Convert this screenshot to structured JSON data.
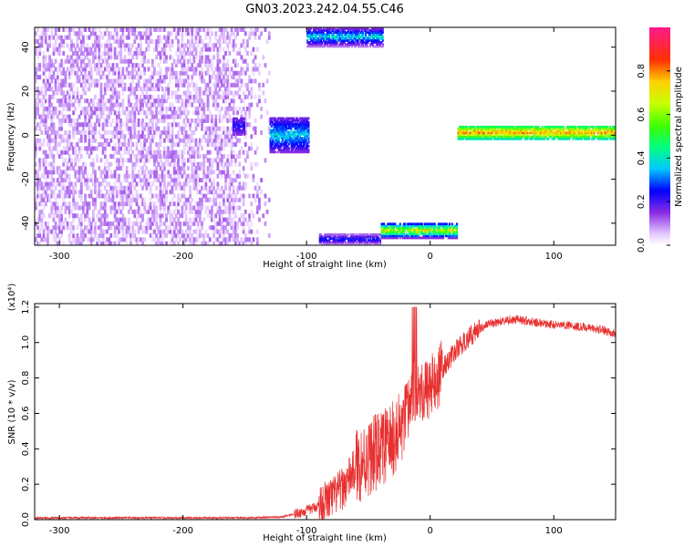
{
  "title": "GN03.2023.242.04.55.C46",
  "colors": {
    "snr_line": "#e83030",
    "axis": "#000000",
    "background": "#ffffff"
  },
  "chart_data": [
    {
      "type": "heatmap",
      "xlabel": "Height of straight line (km)",
      "ylabel": "Frequency (Hz)",
      "xlim": [
        -320,
        150
      ],
      "ylim": [
        -50,
        49
      ],
      "x_ticks": [
        -300,
        -200,
        -100,
        0,
        100
      ],
      "x_tick_labels": [
        "-300",
        "-200",
        "-100",
        "0",
        "100"
      ],
      "y_ticks": [
        -40,
        -20,
        0,
        20,
        40
      ],
      "y_tick_labels": [
        "-40",
        "-20",
        "0",
        "20",
        "40"
      ],
      "colorbar": {
        "label": "Normalized spectral amplitude",
        "range": [
          0,
          1
        ],
        "ticks": [
          0.0,
          0.2,
          0.4,
          0.6,
          0.8
        ],
        "tick_labels": [
          "0.0",
          "0.2",
          "0.4",
          "0.6",
          "0.8"
        ],
        "colormap": "rainbow (white → violet → blue → cyan → green → yellow → red → magenta)"
      },
      "regions": [
        {
          "desc": "scattered noise",
          "x": [
            -320,
            -130
          ],
          "y": [
            -50,
            49
          ],
          "amplitude": [
            0.03,
            0.12
          ]
        },
        {
          "desc": "blob",
          "x": [
            -160,
            -150
          ],
          "y": [
            0,
            8
          ],
          "amplitude": [
            0.15,
            0.25
          ]
        },
        {
          "desc": "blob",
          "x": [
            -130,
            -98
          ],
          "y": [
            -8,
            8
          ],
          "amplitude": [
            0.15,
            0.42
          ]
        },
        {
          "desc": "band",
          "x": [
            -100,
            -38
          ],
          "y": [
            40,
            49
          ],
          "amplitude": [
            0.1,
            0.45
          ]
        },
        {
          "desc": "band",
          "x": [
            -90,
            -40
          ],
          "y": [
            -50,
            -45
          ],
          "amplitude": [
            0.08,
            0.3
          ]
        },
        {
          "desc": "band",
          "x": [
            -40,
            22
          ],
          "y": [
            -47,
            -40
          ],
          "amplitude": [
            0.15,
            0.8
          ]
        },
        {
          "desc": "band",
          "x": [
            22,
            150
          ],
          "y": [
            -2,
            4
          ],
          "amplitude": [
            0.4,
            0.9
          ]
        }
      ]
    },
    {
      "type": "line",
      "xlabel": "Height of straight line (km)",
      "ylabel": "SNR (10 * v/v)",
      "y_multiplier": "(x10⁴)",
      "xlim": [
        -320,
        150
      ],
      "ylim": [
        0,
        1.22
      ],
      "x_ticks": [
        -300,
        -200,
        -100,
        0,
        100
      ],
      "x_tick_labels": [
        "-300",
        "-200",
        "-100",
        "0",
        "100"
      ],
      "y_ticks": [
        0.0,
        0.2,
        0.4,
        0.6,
        0.8,
        1.0,
        1.2
      ],
      "y_tick_labels": [
        "0.0",
        "0.2",
        "0.4",
        "0.6",
        "0.8",
        "1.0",
        "1.2"
      ],
      "series": [
        {
          "x": [
            -320,
            -250,
            -200,
            -150,
            -120,
            -105,
            -100,
            -90,
            -80,
            -70,
            -60,
            -50,
            -40,
            -30,
            -20,
            -15,
            -10,
            -5,
            0,
            5,
            10,
            15,
            20,
            30,
            40,
            50,
            60,
            70,
            80,
            90,
            100,
            110,
            120,
            130,
            140,
            150
          ],
          "y": [
            0.01,
            0.01,
            0.01,
            0.01,
            0.015,
            0.04,
            0.05,
            0.08,
            0.12,
            0.18,
            0.3,
            0.35,
            0.4,
            0.45,
            0.55,
            0.7,
            0.75,
            0.72,
            0.75,
            0.78,
            0.85,
            0.9,
            0.95,
            1.02,
            1.08,
            1.11,
            1.12,
            1.13,
            1.12,
            1.11,
            1.1,
            1.1,
            1.09,
            1.08,
            1.07,
            1.05
          ]
        }
      ]
    }
  ]
}
